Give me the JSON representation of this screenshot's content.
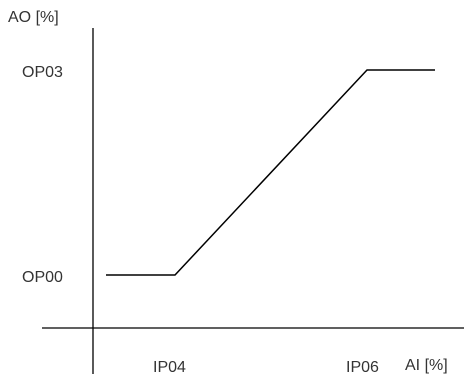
{
  "diagram": {
    "y_axis_label": "AO [%]",
    "x_axis_label": "AI [%]",
    "y_ticks": [
      "OP03",
      "OP00"
    ],
    "x_ticks": [
      "IP04",
      "IP06"
    ],
    "line_color": "#000000",
    "text_color": "#333333"
  }
}
